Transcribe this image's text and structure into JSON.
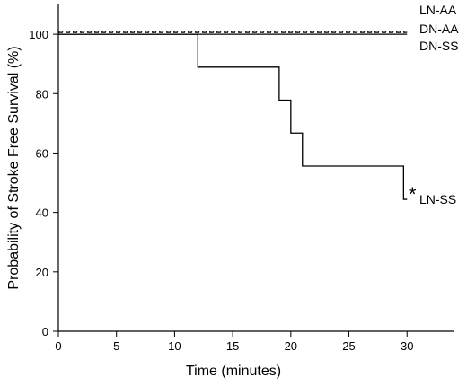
{
  "chart_data": {
    "type": "line",
    "xlabel": "Time (minutes)",
    "ylabel": "Probability of Stroke Free Survival (%)",
    "xlim": [
      0,
      34
    ],
    "ylim": [
      0,
      110
    ],
    "xticks": [
      0,
      5,
      10,
      15,
      20,
      25,
      30
    ],
    "yticks": [
      0,
      20,
      40,
      60,
      80,
      100
    ],
    "grid": false,
    "step": true,
    "series": [
      {
        "name": "LN-AA",
        "style": "dotted",
        "x": [
          0,
          30
        ],
        "y": [
          101,
          101
        ]
      },
      {
        "name": "DN-AA",
        "style": "dashed",
        "x": [
          0,
          30
        ],
        "y": [
          100.6,
          100.6
        ]
      },
      {
        "name": "DN-SS",
        "style": "solid",
        "x": [
          0,
          30
        ],
        "y": [
          100,
          100
        ]
      },
      {
        "name": "LN-SS",
        "style": "solid",
        "x": [
          0,
          12,
          19,
          20,
          21,
          29.7,
          30
        ],
        "y": [
          100,
          88.9,
          77.8,
          66.7,
          55.6,
          44.4,
          44.4
        ]
      }
    ],
    "annotations": [
      {
        "text": "*",
        "near_series": "LN-SS"
      }
    ]
  }
}
